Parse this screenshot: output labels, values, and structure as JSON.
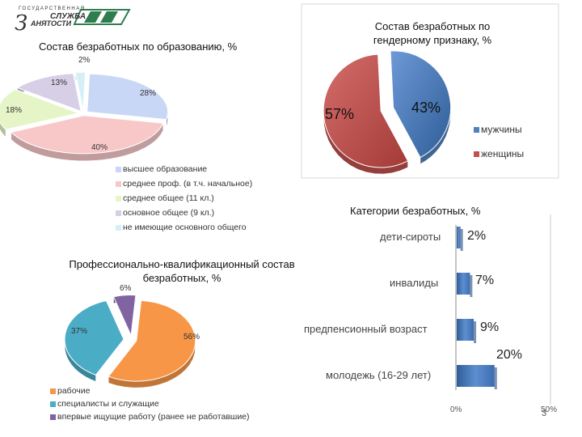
{
  "logo": {
    "line1": "ГОСУДАРСТВЕННАЯ",
    "line2": "СЛУЖБА",
    "line3": "АНЯТОСТИ",
    "initial": "З"
  },
  "page_number": "3",
  "chart_data": [
    {
      "type": "pie",
      "title": "Состав безработных по образованию, %",
      "categories": [
        "высшее образование",
        "среднее проф. (в т.ч. начальное)",
        "среднее общее (11 кл.)",
        "основное общее (9 кл.)",
        "не имеющие основного общего"
      ],
      "values": [
        28,
        40,
        18,
        13,
        2
      ],
      "labels": [
        "28%",
        "40%",
        "18%",
        "13%",
        "2%"
      ],
      "colors": [
        "#c9d7f6",
        "#f8c8c9",
        "#e6f5c7",
        "#d7cfe6",
        "#d4f0f6"
      ],
      "legend": "bottom"
    },
    {
      "type": "pie",
      "title": "Состав безработных по гендерному признаку, %",
      "categories": [
        "мужчины",
        "женщины"
      ],
      "values": [
        43,
        57
      ],
      "labels": [
        "43%",
        "57%"
      ],
      "colors": [
        "#4f81bd",
        "#c0504d"
      ],
      "legend": "right"
    },
    {
      "type": "pie",
      "title": "Профессионально-квалификационный состав безработных, %",
      "categories": [
        "рабочие",
        "специалисты и служащие",
        "впервые ищущие работу (ранее не работавшие)"
      ],
      "values": [
        56,
        37,
        6
      ],
      "labels": [
        "56%",
        "37%",
        "6%"
      ],
      "colors": [
        "#f79646",
        "#4bacc6",
        "#8064a2"
      ],
      "legend": "bottom"
    },
    {
      "type": "bar",
      "title": "Категории безработных, %",
      "categories": [
        "дети-сироты",
        "инвалиды",
        "предпенсионный возраст",
        "молодежь (16-29 лет)"
      ],
      "values": [
        2,
        7,
        9,
        20
      ],
      "labels": [
        "2%",
        "7%",
        "9%",
        "20%"
      ],
      "xlim": [
        0,
        50
      ],
      "ticks": [
        "0%",
        "50%"
      ],
      "color": "#4f81bd"
    }
  ]
}
